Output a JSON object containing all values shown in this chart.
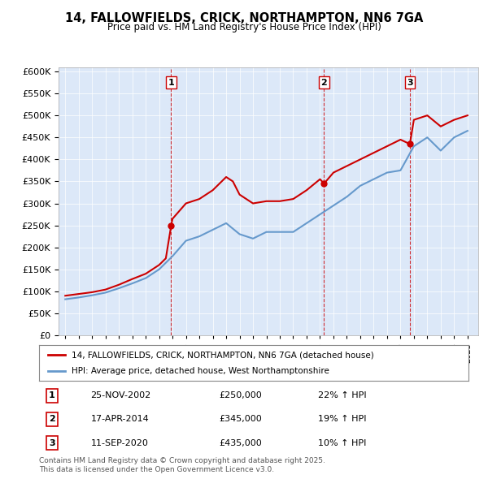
{
  "title": "14, FALLOWFIELDS, CRICK, NORTHAMPTON, NN6 7GA",
  "subtitle": "Price paid vs. HM Land Registry's House Price Index (HPI)",
  "background_color": "#f0f4ff",
  "plot_background": "#dce8f8",
  "ylim": [
    0,
    600000
  ],
  "yticks": [
    0,
    50000,
    100000,
    150000,
    200000,
    250000,
    300000,
    350000,
    400000,
    450000,
    500000,
    550000,
    600000
  ],
  "sales": [
    {
      "date_num": 2002.9,
      "price": 250000,
      "label": "1"
    },
    {
      "date_num": 2014.3,
      "price": 345000,
      "label": "2"
    },
    {
      "date_num": 2020.7,
      "price": 435000,
      "label": "3"
    }
  ],
  "sale_vline_color": "#cc0000",
  "sale_vline_style": "--",
  "hpi_color": "#6699cc",
  "price_color": "#cc0000",
  "legend_items": [
    "14, FALLOWFIELDS, CRICK, NORTHAMPTON, NN6 7GA (detached house)",
    "HPI: Average price, detached house, West Northamptonshire"
  ],
  "table_rows": [
    {
      "label": "1",
      "date": "25-NOV-2002",
      "price": "£250,000",
      "change": "22% ↑ HPI"
    },
    {
      "label": "2",
      "date": "17-APR-2014",
      "price": "£345,000",
      "change": "19% ↑ HPI"
    },
    {
      "label": "3",
      "date": "11-SEP-2020",
      "price": "£435,000",
      "change": "10% ↑ HPI"
    }
  ],
  "footer": "Contains HM Land Registry data © Crown copyright and database right 2025.\nThis data is licensed under the Open Government Licence v3.0.",
  "hpi_data": {
    "years": [
      1995,
      1996,
      1997,
      1998,
      1999,
      2000,
      2001,
      2002,
      2002.5,
      2003,
      2004,
      2005,
      2006,
      2007,
      2008,
      2009,
      2010,
      2011,
      2012,
      2013,
      2014,
      2015,
      2016,
      2017,
      2018,
      2019,
      2020,
      2021,
      2022,
      2023,
      2024,
      2025
    ],
    "values": [
      82000,
      86000,
      91000,
      97000,
      107000,
      118000,
      130000,
      150000,
      165000,
      180000,
      215000,
      225000,
      240000,
      255000,
      230000,
      220000,
      235000,
      235000,
      235000,
      255000,
      275000,
      295000,
      315000,
      340000,
      355000,
      370000,
      375000,
      430000,
      450000,
      420000,
      450000,
      465000
    ]
  },
  "price_data": {
    "years": [
      1995,
      1996,
      1997,
      1998,
      1999,
      2000,
      2001,
      2002,
      2002.5,
      2002.9,
      2003,
      2004,
      2005,
      2006,
      2007,
      2007.5,
      2008,
      2009,
      2010,
      2011,
      2012,
      2013,
      2014,
      2014.3,
      2015,
      2016,
      2017,
      2018,
      2019,
      2020,
      2020.7,
      2021,
      2022,
      2023,
      2024,
      2025
    ],
    "values": [
      90000,
      94000,
      98000,
      104000,
      115000,
      128000,
      140000,
      160000,
      175000,
      250000,
      265000,
      300000,
      310000,
      330000,
      360000,
      350000,
      320000,
      300000,
      305000,
      305000,
      310000,
      330000,
      355000,
      345000,
      370000,
      385000,
      400000,
      415000,
      430000,
      445000,
      435000,
      490000,
      500000,
      475000,
      490000,
      500000
    ]
  }
}
